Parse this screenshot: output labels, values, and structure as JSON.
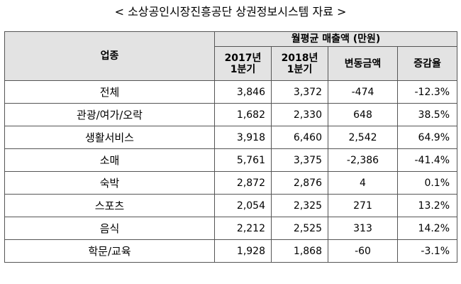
{
  "title": "< 소상공인시장진흥공단 상권정보시스템 자료 >",
  "header": {
    "industry": "업종",
    "group": "월평균  매출액 (만원)",
    "col_2017_line1": "2017년",
    "col_2017_line2": "1분기",
    "col_2018_line1": "2018년",
    "col_2018_line2": "1분기",
    "col_change": "변동금액",
    "col_rate": "증감율"
  },
  "rows": [
    {
      "category": "전체",
      "v2017": "3,846",
      "v2018": "3,372",
      "change": "-474",
      "rate": "-12.3%"
    },
    {
      "category": "관광/여가/오락",
      "v2017": "1,682",
      "v2018": "2,330",
      "change": "648",
      "rate": "38.5%"
    },
    {
      "category": "생활서비스",
      "v2017": "3,918",
      "v2018": "6,460",
      "change": "2,542",
      "rate": "64.9%"
    },
    {
      "category": "소매",
      "v2017": "5,761",
      "v2018": "3,375",
      "change": "-2,386",
      "rate": "-41.4%"
    },
    {
      "category": "숙박",
      "v2017": "2,872",
      "v2018": "2,876",
      "change": "4",
      "rate": "0.1%"
    },
    {
      "category": "스포츠",
      "v2017": "2,054",
      "v2018": "2,325",
      "change": "271",
      "rate": "13.2%"
    },
    {
      "category": "음식",
      "v2017": "2,212",
      "v2018": "2,525",
      "change": "313",
      "rate": "14.2%"
    },
    {
      "category": "학문/교육",
      "v2017": "1,928",
      "v2018": "1,868",
      "change": "-60",
      "rate": "-3.1%"
    }
  ]
}
